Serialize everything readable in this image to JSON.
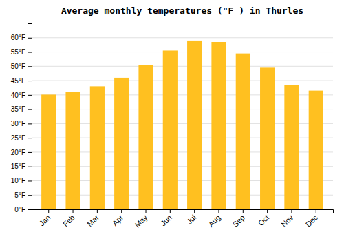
{
  "chart_data": {
    "type": "bar",
    "title": "Average monthly temperatures (°F ) in Thurles",
    "categories": [
      "Jan",
      "Feb",
      "Mar",
      "Apr",
      "May",
      "Jun",
      "Jul",
      "Aug",
      "Sep",
      "Oct",
      "Nov",
      "Dec"
    ],
    "values": [
      40.1,
      41.0,
      43.0,
      46.0,
      50.5,
      55.5,
      59.0,
      58.5,
      54.5,
      49.5,
      43.5,
      41.5
    ],
    "color": "#FFC020",
    "ylim": [
      0,
      65
    ],
    "yticks": [
      {
        "value": 0,
        "label": "0°F"
      },
      {
        "value": 5,
        "label": "5°F"
      },
      {
        "value": 10,
        "label": "10°F"
      },
      {
        "value": 15,
        "label": "15°F"
      },
      {
        "value": 20,
        "label": "20°F"
      },
      {
        "value": 25,
        "label": "25°F"
      },
      {
        "value": 30,
        "label": "30°F"
      },
      {
        "value": 35,
        "label": "35°F"
      },
      {
        "value": 40,
        "label": "40°F"
      },
      {
        "value": 45,
        "label": "45°F"
      },
      {
        "value": 50,
        "label": "50°F"
      },
      {
        "value": 55,
        "label": "55°F"
      },
      {
        "value": 60,
        "label": "60°F"
      }
    ],
    "grid": true
  }
}
